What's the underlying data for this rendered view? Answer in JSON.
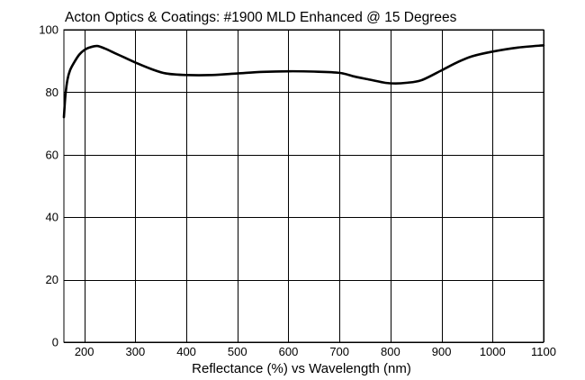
{
  "chart_data": {
    "type": "line",
    "title": "Acton Optics & Coatings: #1900 MLD Enhanced @ 15 Degrees",
    "xlabel": "Reflectance (%)  vs  Wavelength (nm)",
    "ylabel": "",
    "xlim": [
      160,
      1100
    ],
    "ylim": [
      0,
      100
    ],
    "xticks": [
      200,
      300,
      400,
      500,
      600,
      700,
      800,
      900,
      1000,
      1100
    ],
    "yticks": [
      0,
      20,
      40,
      60,
      80,
      100
    ],
    "grid": true,
    "series": [
      {
        "x": [
          160,
          163,
          167,
          172,
          180,
          190,
          200,
          210,
          225,
          240,
          260,
          280,
          300,
          330,
          360,
          400,
          450,
          500,
          550,
          600,
          650,
          700,
          730,
          760,
          790,
          810,
          830,
          860,
          900,
          930,
          960,
          1000,
          1050,
          1100
        ],
        "values": [
          72,
          79,
          84,
          87,
          89.5,
          92,
          93.5,
          94.3,
          94.8,
          94,
          92.5,
          91,
          89.5,
          87.5,
          86,
          85.5,
          85.5,
          86,
          86.5,
          86.7,
          86.6,
          86.2,
          85,
          84,
          83,
          82.8,
          83,
          83.8,
          87,
          89.5,
          91.5,
          93,
          94.3,
          95
        ]
      }
    ]
  }
}
